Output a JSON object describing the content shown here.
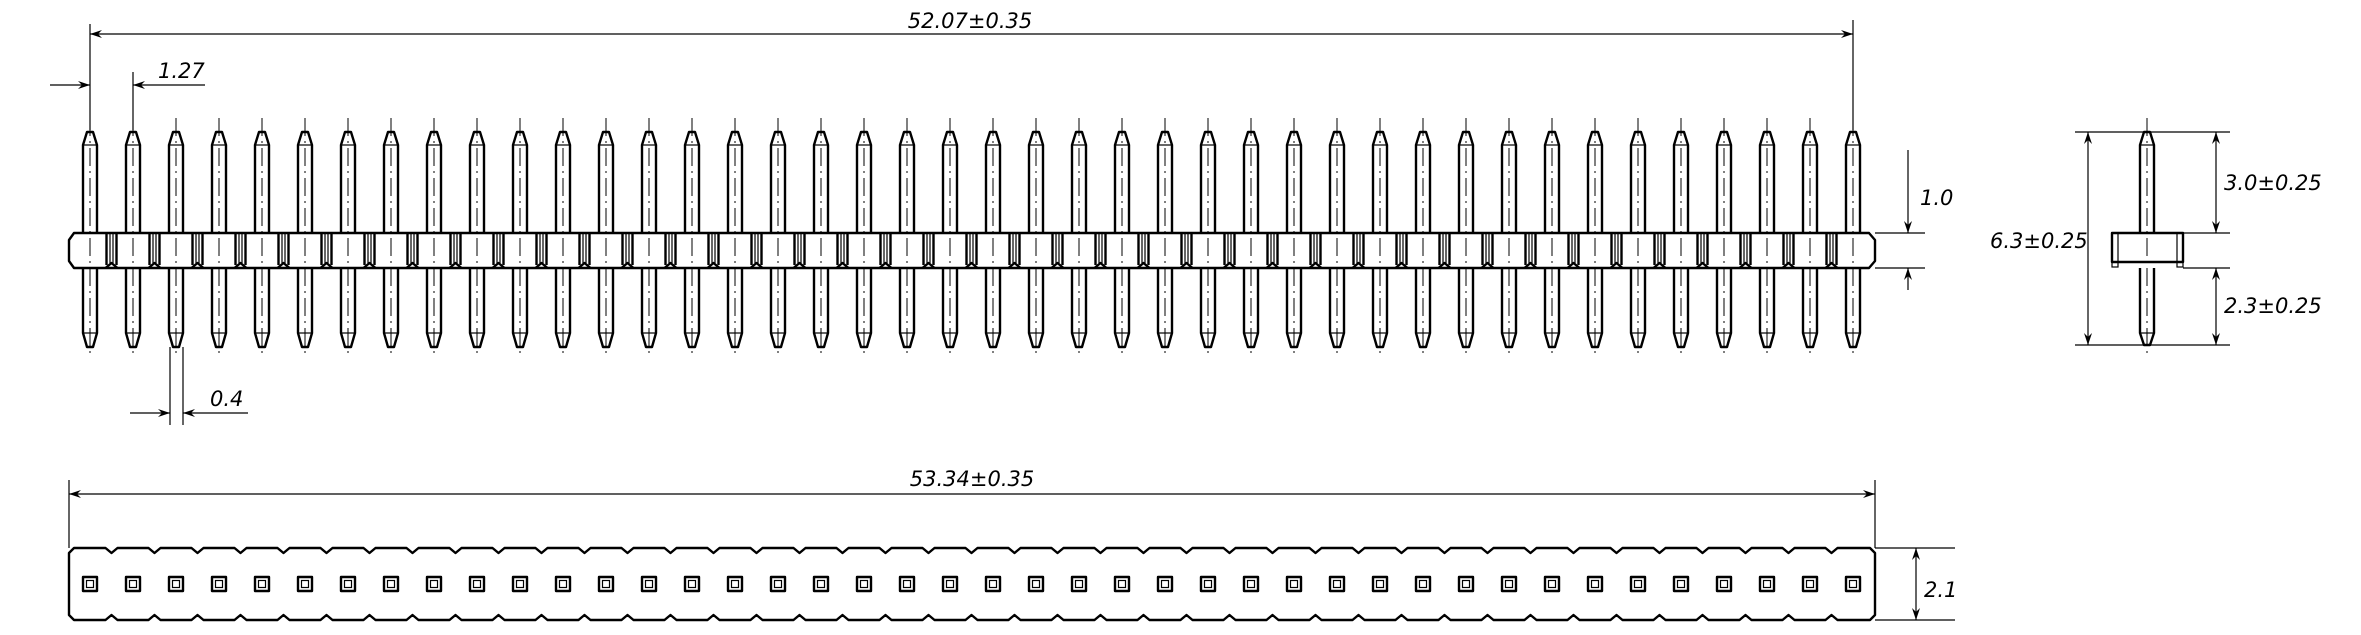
{
  "drawing": {
    "pin_count": 42,
    "line_color": "#000000",
    "background": "#ffffff",
    "dimensions": {
      "overall_pin_span": "52.07±0.35",
      "pitch": "1.27",
      "pin_width": "0.4",
      "body_height": "1.0",
      "body_length": "53.34±0.35",
      "body_width": "2.1",
      "total_length": "6.3±0.25",
      "upper_pin_length": "3.0±0.25",
      "lower_pin_length": "2.3±0.25"
    }
  }
}
